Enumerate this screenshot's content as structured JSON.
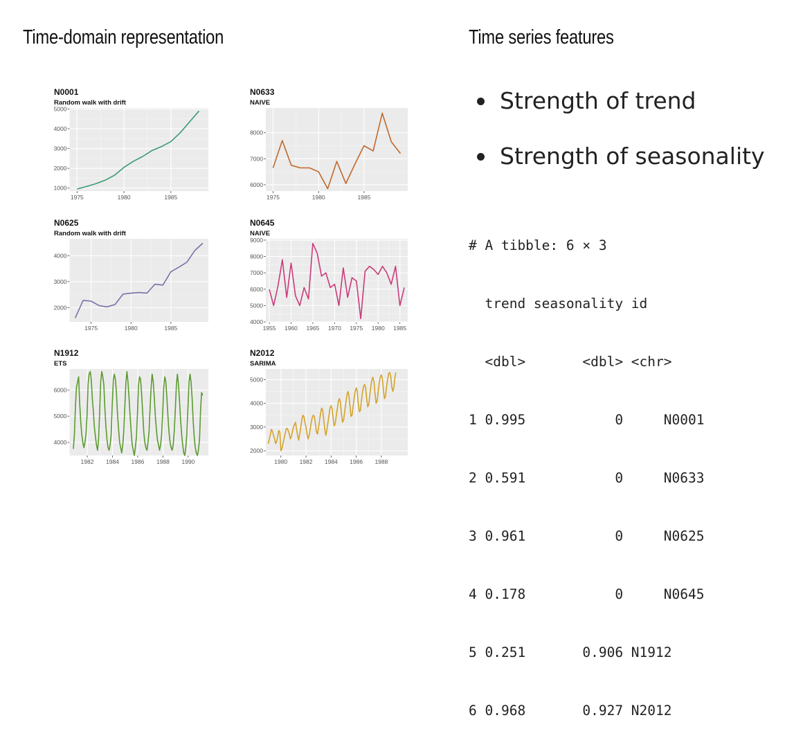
{
  "left_heading": "Time-domain representation",
  "right_heading": "Time series features",
  "bullets": [
    "Strength of trend",
    "Strength of seasonality"
  ],
  "tibble": {
    "caption": "# A tibble: 6 × 3",
    "header_line": "  trend seasonality id",
    "type_line": "  <dbl>       <dbl> <chr>",
    "row_lines": [
      "1 0.995           0     N0001",
      "2 0.591           0     N0633",
      "3 0.961           0     N0625",
      "4 0.178           0     N0645",
      "5 0.251       0.906 N1912",
      "6 0.968       0.927 N2012"
    ],
    "columns": [
      "trend",
      "seasonality",
      "id"
    ],
    "types": [
      "<dbl>",
      "<dbl>",
      "<chr>"
    ],
    "rows": [
      {
        "row": 1,
        "trend": 0.995,
        "seasonality": 0,
        "id": "N0001"
      },
      {
        "row": 2,
        "trend": 0.591,
        "seasonality": 0,
        "id": "N0633"
      },
      {
        "row": 3,
        "trend": 0.961,
        "seasonality": 0,
        "id": "N0625"
      },
      {
        "row": 4,
        "trend": 0.178,
        "seasonality": 0,
        "id": "N0645"
      },
      {
        "row": 5,
        "trend": 0.251,
        "seasonality": 0.906,
        "id": "N1912"
      },
      {
        "row": 6,
        "trend": 0.968,
        "seasonality": 0.927,
        "id": "N2012"
      }
    ]
  },
  "chart_data": [
    {
      "type": "line",
      "title": "N0001",
      "subtitle": "Random walk with drift",
      "color": "#3a9a73",
      "x": [
        1975,
        1976,
        1977,
        1978,
        1979,
        1980,
        1981,
        1982,
        1983,
        1984,
        1985,
        1986,
        1987,
        1988
      ],
      "y": [
        950,
        1080,
        1220,
        1400,
        1650,
        2050,
        2350,
        2600,
        2900,
        3100,
        3350,
        3800,
        4350,
        4900
      ],
      "xlim": [
        1974.2,
        1989.0
      ],
      "ylim": [
        850,
        5050
      ],
      "xticks": [
        1975,
        1980,
        1985
      ],
      "yticks": [
        1000,
        2000,
        3000,
        4000,
        5000
      ]
    },
    {
      "type": "line",
      "title": "N0633",
      "subtitle": "NAIVE",
      "color": "#c0682a",
      "x": [
        1975,
        1976,
        1977,
        1978,
        1979,
        1980,
        1981,
        1982,
        1983,
        1984,
        1985,
        1986,
        1987,
        1988,
        1989
      ],
      "y": [
        6650,
        7700,
        6750,
        6650,
        6650,
        6500,
        5850,
        6900,
        6050,
        6800,
        7500,
        7300,
        8750,
        7650,
        7200
      ],
      "xlim": [
        1974.2,
        1989.8
      ],
      "ylim": [
        5760,
        8950
      ],
      "xticks": [
        1975,
        1980,
        1985
      ],
      "yticks": [
        6000,
        7000,
        8000
      ]
    },
    {
      "type": "line",
      "title": "N0625",
      "subtitle": "Random walk with drift",
      "color": "#7b6fa8",
      "x": [
        1973,
        1974,
        1975,
        1976,
        1977,
        1978,
        1979,
        1980,
        1981,
        1982,
        1983,
        1984,
        1985,
        1986,
        1987,
        1988,
        1989
      ],
      "y": [
        1600,
        2280,
        2250,
        2080,
        2030,
        2120,
        2520,
        2560,
        2580,
        2560,
        2900,
        2870,
        3380,
        3560,
        3750,
        4200,
        4480
      ],
      "xlim": [
        1972.3,
        1989.7
      ],
      "ylim": [
        1450,
        4650
      ],
      "xticks": [
        1975,
        1980,
        1985
      ],
      "yticks": [
        2000,
        3000,
        4000
      ]
    },
    {
      "type": "line",
      "title": "N0645",
      "subtitle": "NAIVE",
      "color": "#c93a7a",
      "x": [
        1955,
        1956,
        1957,
        1958,
        1959,
        1960,
        1961,
        1962,
        1963,
        1964,
        1965,
        1966,
        1967,
        1968,
        1969,
        1970,
        1971,
        1972,
        1973,
        1974,
        1975,
        1976,
        1977,
        1978,
        1979,
        1980,
        1981,
        1982,
        1983,
        1984,
        1985,
        1986
      ],
      "y": [
        6000,
        5000,
        6200,
        7800,
        5500,
        7600,
        5600,
        5000,
        6100,
        5400,
        8800,
        8200,
        6800,
        7000,
        6100,
        6300,
        5000,
        7300,
        5500,
        6700,
        6500,
        4200,
        7100,
        7400,
        7200,
        6900,
        7400,
        7000,
        6300,
        7400,
        5000,
        6100
      ],
      "xlim": [
        1954.2,
        1986.8
      ],
      "ylim": [
        4000,
        9080
      ],
      "xticks": [
        1955,
        1960,
        1965,
        1970,
        1975,
        1980,
        1985
      ],
      "yticks": [
        4000,
        5000,
        6000,
        7000,
        8000,
        9000
      ]
    },
    {
      "type": "line",
      "title": "N1912",
      "subtitle": "ETS",
      "color": "#5a9a2e",
      "x_start": 1980.9,
      "x_step": 0.0833,
      "x_count": 124,
      "seasonal_period": 12,
      "y": [
        3750,
        4300,
        5400,
        6100,
        6300,
        6500,
        5500,
        4800,
        4300,
        4000,
        3800,
        4000,
        4300,
        5000,
        6200,
        6600,
        6700,
        6400,
        5700,
        5200,
        4600,
        4200,
        3900,
        3700,
        4100,
        5100,
        6300,
        6700,
        6500,
        6200,
        5300,
        4600,
        4100,
        3800,
        3700,
        3900,
        4300,
        5400,
        6400,
        6600,
        6400,
        5900,
        5100,
        4500,
        4000,
        3800,
        3600,
        3900,
        4400,
        5400,
        6300,
        6700,
        6300,
        5700,
        5000,
        4400,
        3900,
        3700,
        3500,
        3800,
        4200,
        5100,
        6200,
        6500,
        6400,
        5800,
        5100,
        4400,
        4000,
        3800,
        3700,
        4000,
        4400,
        5300,
        6100,
        6600,
        6300,
        5700,
        5000,
        4500,
        4100,
        3900,
        3700,
        3900,
        4300,
        5100,
        6100,
        6500,
        6300,
        5700,
        5000,
        4400,
        4000,
        3800,
        3700,
        3900,
        4400,
        5200,
        6200,
        6600,
        6200,
        5600,
        4900,
        4300,
        3900,
        3600,
        3500,
        3800,
        4300,
        5300,
        6300,
        6600,
        6300,
        5700,
        4800,
        4200,
        3800,
        3600,
        3500,
        3700,
        4100,
        5200,
        5900,
        5800
      ],
      "xlim": [
        1980.6,
        1991.6
      ],
      "ylim": [
        3500,
        6800
      ],
      "xticks": [
        1982,
        1984,
        1986,
        1988,
        1990
      ],
      "yticks": [
        4000,
        5000,
        6000
      ]
    },
    {
      "type": "line",
      "title": "N2012",
      "subtitle": "SARIMA",
      "color": "#d4a228",
      "x_start": 1979.0,
      "x_step": 0.0833,
      "x_count": 123,
      "seasonal_period": 12,
      "y": [
        2300,
        2500,
        2700,
        2900,
        2800,
        2650,
        2500,
        2300,
        2400,
        2600,
        2850,
        2800,
        2000,
        2100,
        2300,
        2500,
        2700,
        2900,
        2950,
        2850,
        2700,
        2500,
        2600,
        2800,
        3000,
        3100,
        3200,
        2900,
        2650,
        2450,
        2700,
        3000,
        3300,
        3500,
        3450,
        3200,
        3000,
        2700,
        2500,
        2650,
        2900,
        3200,
        3400,
        3500,
        3450,
        3150,
        2800,
        2700,
        3000,
        3300,
        3600,
        3800,
        3700,
        3300,
        2900,
        2650,
        2900,
        3200,
        3500,
        3800,
        3900,
        3750,
        3350,
        3050,
        3150,
        3500,
        3800,
        4100,
        4200,
        4000,
        3500,
        3200,
        3300,
        3650,
        4000,
        4300,
        4500,
        4350,
        3900,
        3450,
        3500,
        3850,
        4200,
        4500,
        4650,
        4500,
        4000,
        3650,
        3700,
        4100,
        4450,
        4700,
        4800,
        4650,
        4200,
        3850,
        3950,
        4350,
        4700,
        5000,
        5100,
        4900,
        4400,
        4000,
        4100,
        4500,
        4850,
        5100,
        5200,
        5050,
        4550,
        4200,
        4300,
        4700,
        5000,
        5250,
        5300,
        5150,
        4700,
        4500,
        4700,
        5100,
        5300
      ],
      "xlim": [
        1978.8,
        1990.1
      ],
      "ylim": [
        1800,
        5450
      ],
      "xticks": [
        1980,
        1982,
        1984,
        1986,
        1988
      ],
      "yticks": [
        2000,
        3000,
        4000,
        5000
      ]
    }
  ]
}
